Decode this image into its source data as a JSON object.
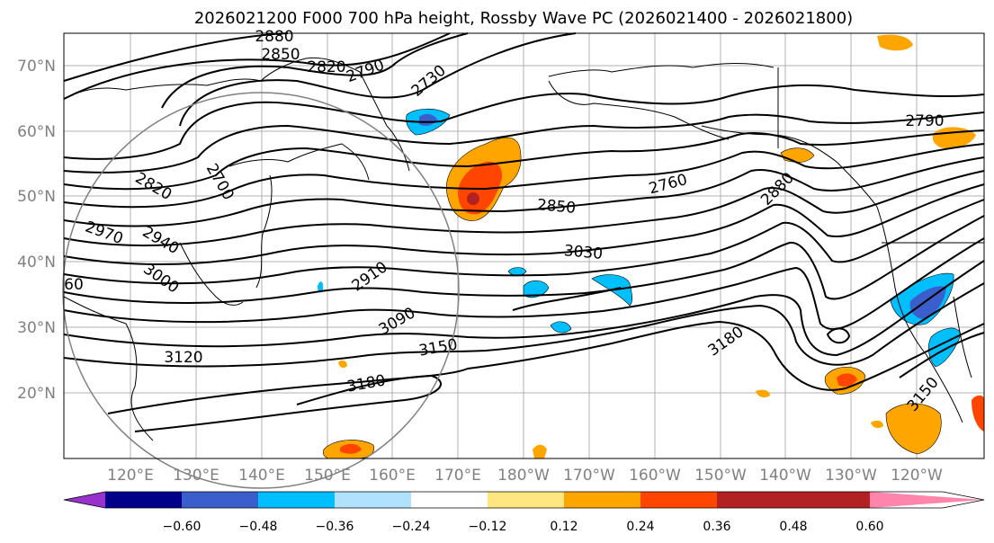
{
  "title": "2026021200 F000 700 hPa height, Rossby Wave PC (2026021400 - 2026021800)",
  "lat_labels": [
    "70°N",
    "60°N",
    "50°N",
    "40°N",
    "30°N",
    "20°N"
  ],
  "lon_labels": [
    "120°E",
    "130°E",
    "140°E",
    "150°E",
    "160°E",
    "170°E",
    "180°W",
    "170°W",
    "160°W",
    "150°W",
    "140°W",
    "130°W",
    "120°W"
  ],
  "contour_labels": [
    "2880",
    "2850",
    "2820",
    "2790",
    "2730",
    "2700",
    "2760",
    "2820",
    "2790",
    "2850",
    "2880",
    "2970",
    "2940",
    "3000",
    "3030",
    "60",
    "2910",
    "3090",
    "3120",
    "3150",
    "3180",
    "3180",
    "3150"
  ],
  "colorbar": {
    "ticks": [
      "−0.60",
      "−0.48",
      "−0.36",
      "−0.24",
      "−0.12",
      "0.12",
      "0.24",
      "0.36",
      "0.48",
      "0.60"
    ],
    "colors": [
      "#9932cc",
      "#00008b",
      "#3a5fcd",
      "#00bfff",
      "#b0e2ff",
      "#ffffff",
      "#ffe680",
      "#ffa500",
      "#ff4500",
      "#b22222",
      "#ff85ad"
    ]
  },
  "anomaly_colors": {
    "blue": "#00bfff",
    "dark_blue": "#3a5fcd",
    "orange": "#ffa500",
    "red_orange": "#ff4500",
    "light_yellow": "#ffe680"
  }
}
